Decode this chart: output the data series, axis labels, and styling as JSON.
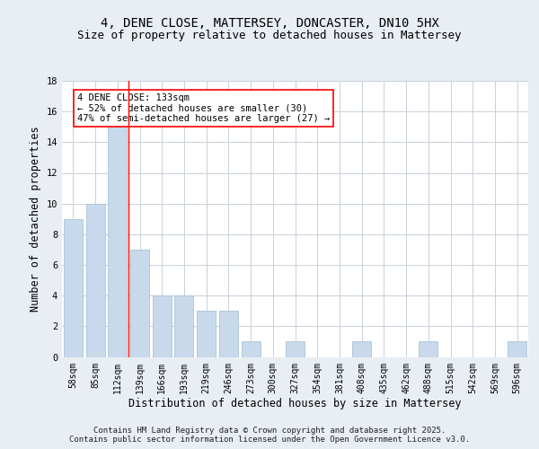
{
  "title_line1": "4, DENE CLOSE, MATTERSEY, DONCASTER, DN10 5HX",
  "title_line2": "Size of property relative to detached houses in Mattersey",
  "xlabel": "Distribution of detached houses by size in Mattersey",
  "ylabel": "Number of detached properties",
  "bar_labels": [
    "58sqm",
    "85sqm",
    "112sqm",
    "139sqm",
    "166sqm",
    "193sqm",
    "219sqm",
    "246sqm",
    "273sqm",
    "300sqm",
    "327sqm",
    "354sqm",
    "381sqm",
    "408sqm",
    "435sqm",
    "462sqm",
    "488sqm",
    "515sqm",
    "542sqm",
    "569sqm",
    "596sqm"
  ],
  "bar_values": [
    9,
    10,
    15,
    7,
    4,
    4,
    3,
    3,
    1,
    0,
    1,
    0,
    0,
    1,
    0,
    0,
    1,
    0,
    0,
    0,
    1
  ],
  "bar_color": "#c8d9eb",
  "bar_edgecolor": "#a8c4d8",
  "vline_x": 2.5,
  "vline_color": "red",
  "annotation_text": "4 DENE CLOSE: 133sqm\n← 52% of detached houses are smaller (30)\n47% of semi-detached houses are larger (27) →",
  "annotation_box_color": "white",
  "annotation_box_edgecolor": "red",
  "ylim": [
    0,
    18
  ],
  "yticks": [
    0,
    2,
    4,
    6,
    8,
    10,
    12,
    14,
    16,
    18
  ],
  "background_color": "#e8eef4",
  "plot_background": "#ffffff",
  "grid_color": "#c8d0d8",
  "title_fontsize": 10,
  "subtitle_fontsize": 9,
  "xlabel_fontsize": 8.5,
  "ylabel_fontsize": 8.5,
  "tick_fontsize": 7,
  "annotation_fontsize": 7.5,
  "footer_fontsize": 6.5,
  "footer_text": "Contains HM Land Registry data © Crown copyright and database right 2025.\nContains public sector information licensed under the Open Government Licence v3.0."
}
